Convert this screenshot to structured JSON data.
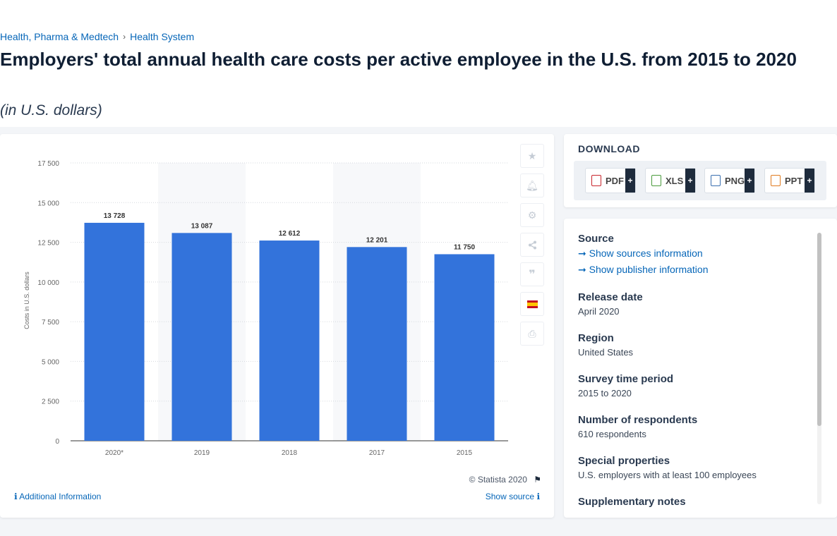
{
  "breadcrumb": [
    "Health, Pharma & Medtech",
    "Health System"
  ],
  "title": "Employers' total annual health care costs per active employee in the U.S. from 2015 to 2020",
  "subtitle": "(in U.S. dollars)",
  "chart_data": {
    "type": "bar",
    "categories": [
      "2020*",
      "2019",
      "2018",
      "2017",
      "2015"
    ],
    "values": [
      13728,
      13087,
      12612,
      12201,
      11750
    ],
    "value_labels": [
      "13 728",
      "13 087",
      "12 612",
      "12 201",
      "11 750"
    ],
    "ylabel": "Costs in U.S. dollars",
    "ylim": [
      0,
      17500
    ],
    "yticks": [
      0,
      2500,
      5000,
      7500,
      10000,
      12500,
      15000,
      17500
    ],
    "ytick_labels": [
      "0",
      "2 500",
      "5 000",
      "7 500",
      "10 000",
      "12 500",
      "15 000",
      "17 500"
    ],
    "bar_color": "#3373db",
    "grid": true
  },
  "chart_footer": {
    "copyright": "© Statista 2020",
    "additional_info": "Additional Information",
    "show_source": "Show source"
  },
  "tools": [
    "star-icon",
    "bell-icon",
    "gear-icon",
    "share-icon",
    "quote-icon",
    "spain-flag-icon",
    "print-icon"
  ],
  "download": {
    "title": "DOWNLOAD",
    "buttons": [
      "PDF",
      "XLS",
      "PNG",
      "PPT"
    ],
    "plus": "+"
  },
  "info": {
    "source_label": "Source",
    "show_sources": "Show sources information",
    "show_publisher": "Show publisher information",
    "release_date_label": "Release date",
    "release_date": "April 2020",
    "region_label": "Region",
    "region": "United States",
    "survey_period_label": "Survey time period",
    "survey_period": "2015 to 2020",
    "respondents_label": "Number of respondents",
    "respondents": "610 respondents",
    "special_label": "Special properties",
    "special": "U.S. employers with at least 100 employees",
    "supplementary_label": "Supplementary notes"
  }
}
